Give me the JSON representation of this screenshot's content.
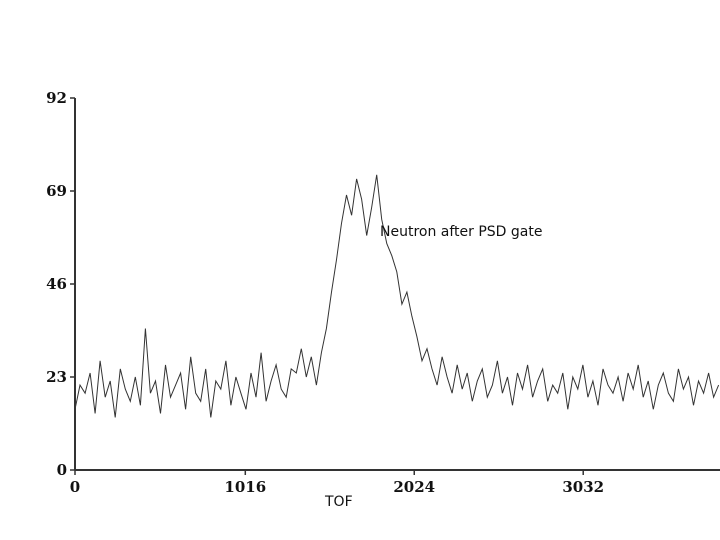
{
  "chart_data": {
    "type": "line",
    "title": "",
    "xlabel": "TOF",
    "ylabel": "",
    "annotation": "Neutron after PSD gate",
    "xlim": [
      0,
      3860
    ],
    "ylim": [
      0,
      92
    ],
    "x_ticks": [
      0,
      1016,
      2024,
      3032
    ],
    "y_ticks": [
      0,
      23,
      46,
      69,
      92
    ],
    "grid": false,
    "line_color": "#333333",
    "series": [
      {
        "x": [
          0,
          30,
          60,
          90,
          120,
          150,
          180,
          210,
          240,
          270,
          300,
          330,
          360,
          390,
          420,
          450,
          480,
          510,
          540,
          570,
          600,
          630,
          660,
          690,
          720,
          750,
          780,
          810,
          840,
          870,
          900,
          930,
          960,
          990,
          1020,
          1050,
          1080,
          1110,
          1140,
          1170,
          1200,
          1230,
          1260,
          1290,
          1320,
          1350,
          1380,
          1410,
          1440,
          1470,
          1500,
          1530,
          1560,
          1590,
          1620,
          1650,
          1680,
          1710,
          1740,
          1770,
          1800,
          1830,
          1860,
          1890,
          1920,
          1950,
          1980,
          2010,
          2040,
          2070,
          2100,
          2130,
          2160,
          2190,
          2220,
          2250,
          2280,
          2310,
          2340,
          2370,
          2400,
          2430,
          2460,
          2490,
          2520,
          2550,
          2580,
          2610,
          2640,
          2670,
          2700,
          2730,
          2760,
          2790,
          2820,
          2850,
          2880,
          2910,
          2940,
          2970,
          3000,
          3030,
          3060,
          3090,
          3120,
          3150,
          3180,
          3210,
          3240,
          3270,
          3300,
          3330,
          3360,
          3390,
          3420,
          3450,
          3480,
          3510,
          3540,
          3570,
          3600,
          3630,
          3660,
          3690,
          3720,
          3750,
          3780,
          3810,
          3840
        ],
        "values": [
          15,
          21,
          19,
          24,
          14,
          27,
          18,
          22,
          13,
          25,
          20,
          17,
          23,
          16,
          35,
          19,
          22,
          14,
          26,
          18,
          21,
          24,
          15,
          28,
          19,
          17,
          25,
          13,
          22,
          20,
          27,
          16,
          23,
          19,
          15,
          24,
          18,
          29,
          17,
          22,
          26,
          20,
          18,
          25,
          24,
          30,
          23,
          28,
          21,
          29,
          35,
          44,
          52,
          61,
          68,
          63,
          72,
          67,
          58,
          65,
          73,
          62,
          56,
          53,
          49,
          41,
          44,
          38,
          33,
          27,
          30,
          25,
          21,
          28,
          23,
          19,
          26,
          20,
          24,
          17,
          22,
          25,
          18,
          21,
          27,
          19,
          23,
          16,
          24,
          20,
          26,
          18,
          22,
          25,
          17,
          21,
          19,
          24,
          15,
          23,
          20,
          26,
          18,
          22,
          16,
          25,
          21,
          19,
          23,
          17,
          24,
          20,
          26,
          18,
          22,
          15,
          21,
          24,
          19,
          17,
          25,
          20,
          23,
          16,
          22,
          19,
          24,
          18,
          21
        ]
      }
    ]
  }
}
